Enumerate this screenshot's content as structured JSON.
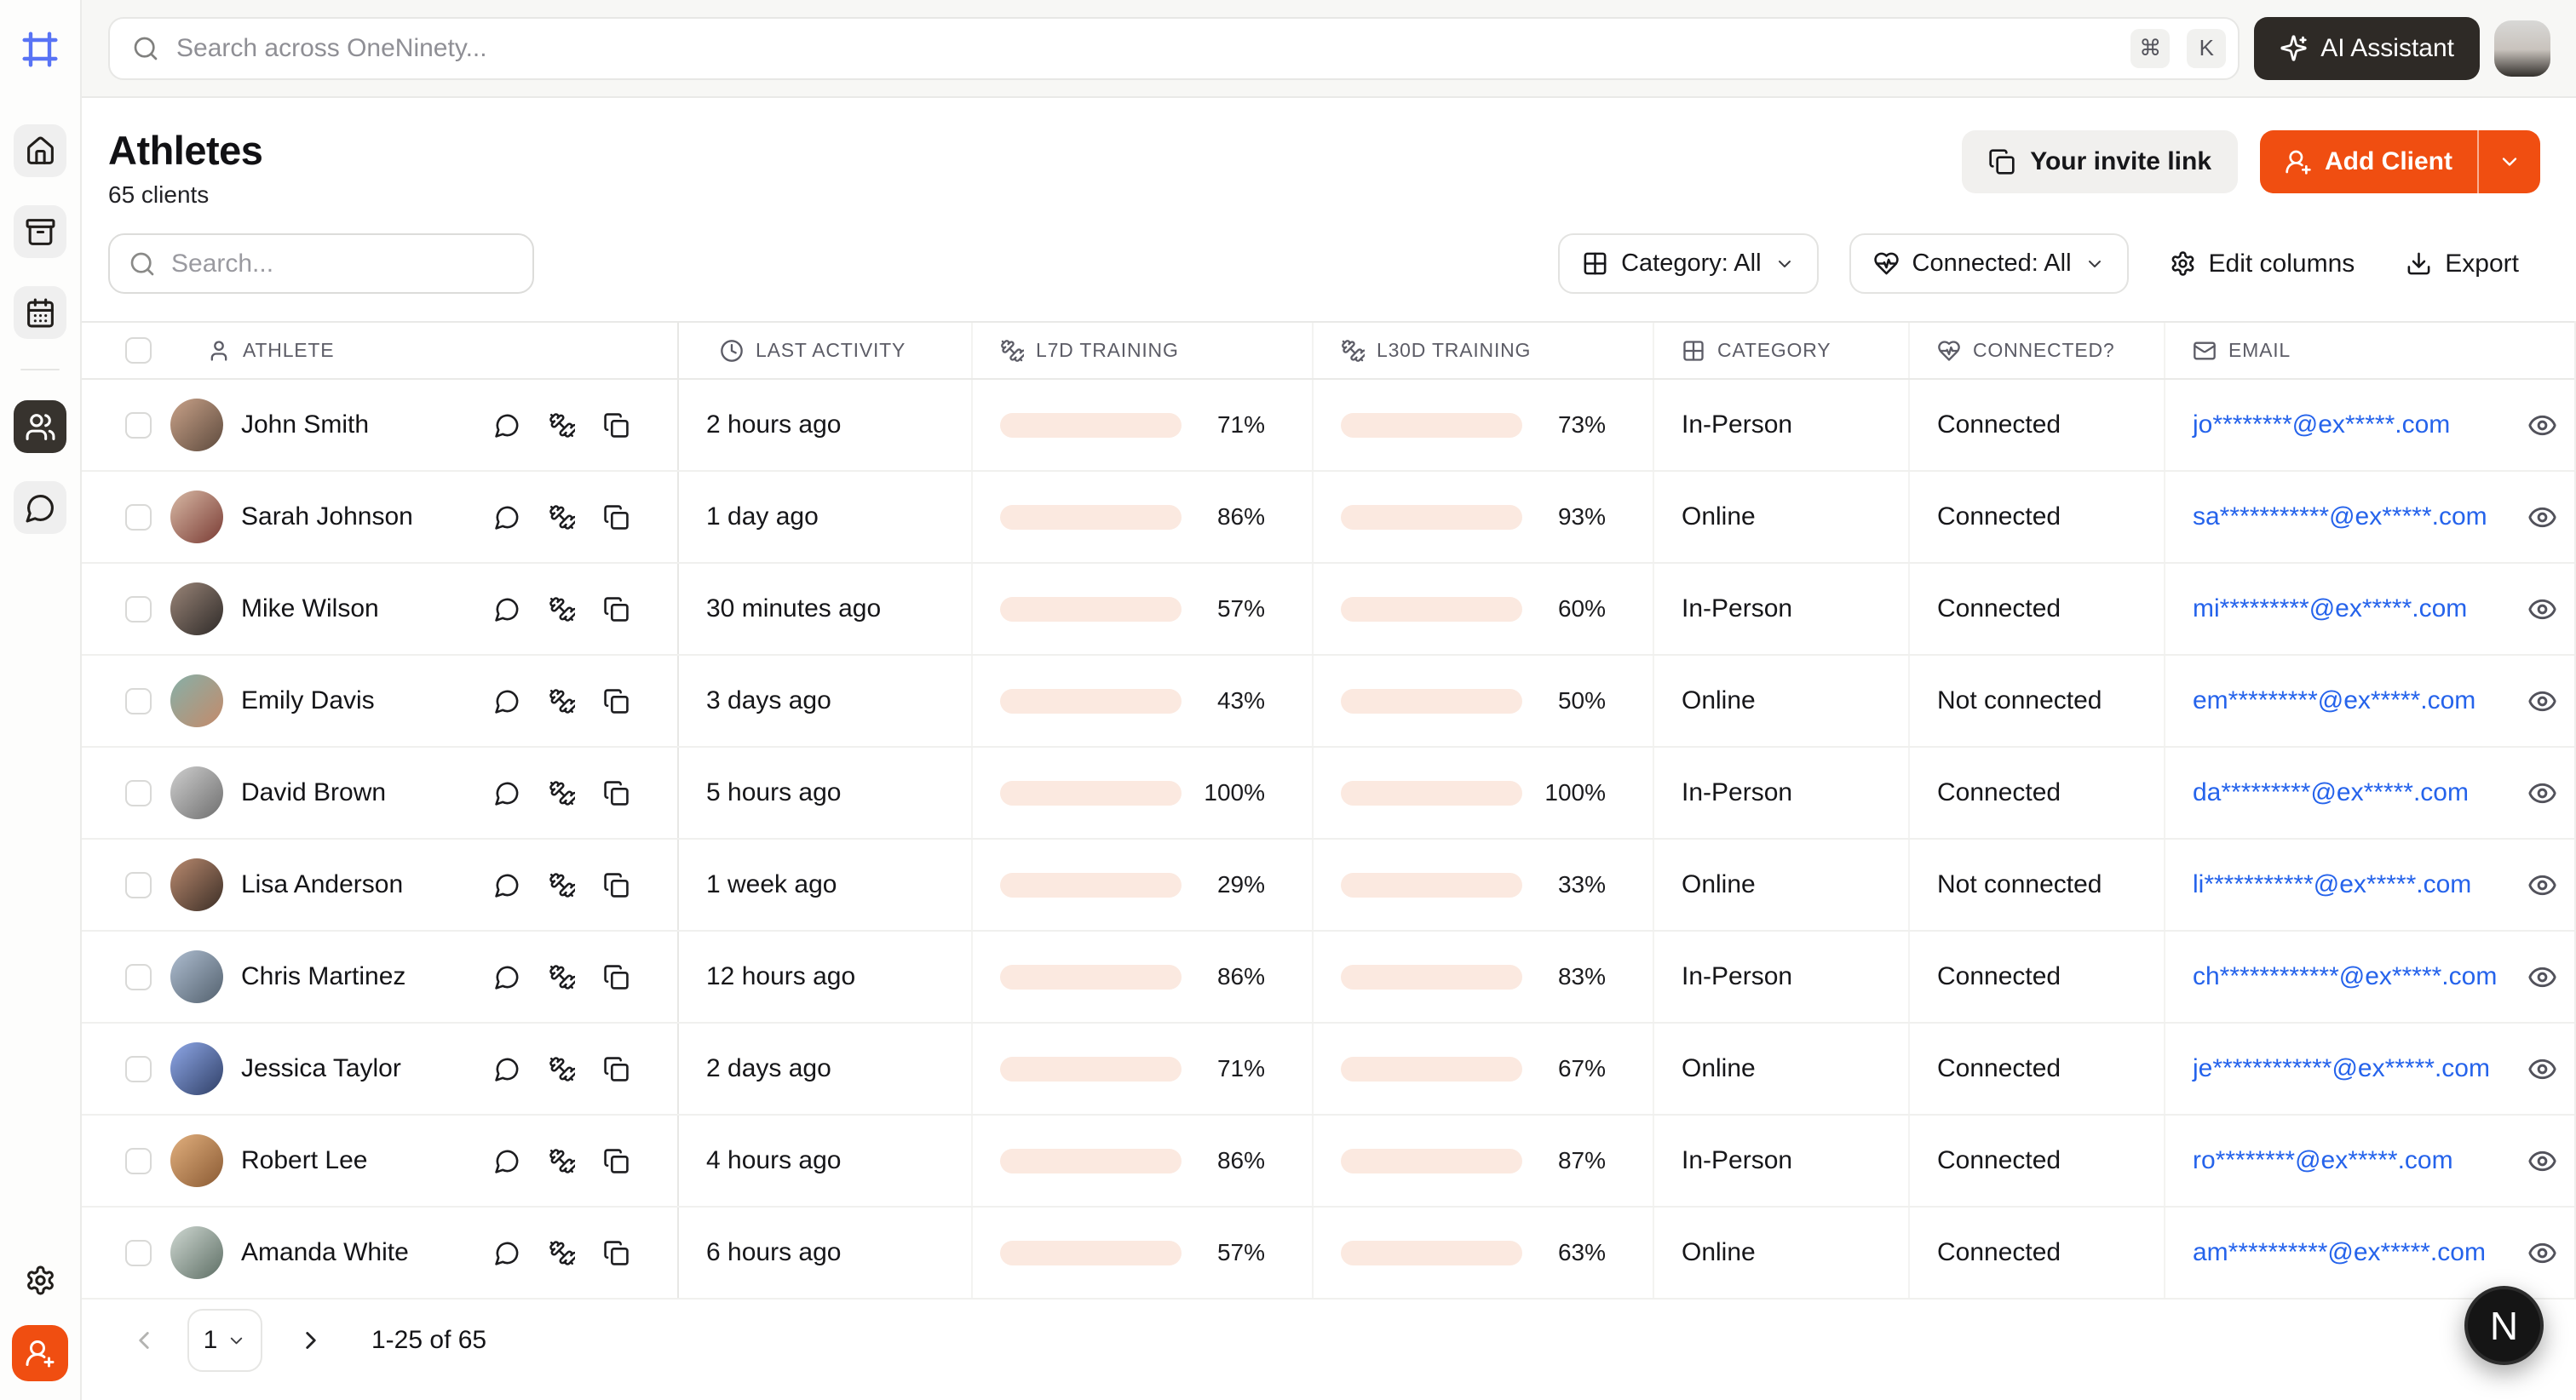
{
  "topbar": {
    "search_placeholder": "Search across OneNinety...",
    "shortcut_keys": [
      "⌘",
      "K"
    ],
    "ai_assistant_label": "AI Assistant"
  },
  "sidebar": {
    "logo_icon": "frame",
    "items": [
      {
        "icon": "home",
        "active": false
      },
      {
        "icon": "archive",
        "active": false
      },
      {
        "icon": "calendar",
        "active": false
      },
      {
        "icon": "users",
        "active": true
      },
      {
        "icon": "message-circle",
        "active": false
      }
    ],
    "bottom_items": [
      {
        "icon": "settings",
        "accent": false
      },
      {
        "icon": "user-plus",
        "accent": true
      }
    ]
  },
  "page_header": {
    "title": "Athletes",
    "subtitle": "65 clients",
    "invite_link_label": "Your invite link",
    "add_client_label": "Add Client"
  },
  "toolbar": {
    "search_placeholder": "Search...",
    "category_filter_label": "Category: All",
    "connected_filter_label": "Connected: All",
    "edit_columns_label": "Edit columns",
    "export_label": "Export"
  },
  "table": {
    "columns": [
      {
        "icon": "user",
        "label": "ATHLETE"
      },
      {
        "icon": "clock",
        "label": "LAST ACTIVITY"
      },
      {
        "icon": "dumbbell",
        "label": "L7D TRAINING"
      },
      {
        "icon": "dumbbell",
        "label": "L30D TRAINING"
      },
      {
        "icon": "grid",
        "label": "CATEGORY"
      },
      {
        "icon": "heart-pulse",
        "label": "CONNECTED?"
      },
      {
        "icon": "mail",
        "label": "EMAIL"
      }
    ],
    "row_action_icons": [
      "message-circle",
      "dumbbell",
      "copy"
    ],
    "rows": [
      {
        "name": "John Smith",
        "last_activity": "2 hours ago",
        "l7d": "71%",
        "l30d": "73%",
        "category": "In-Person",
        "connected": "Connected",
        "email": "jo********@ex*****.com"
      },
      {
        "name": "Sarah Johnson",
        "last_activity": "1 day ago",
        "l7d": "86%",
        "l30d": "93%",
        "category": "Online",
        "connected": "Connected",
        "email": "sa***********@ex*****.com"
      },
      {
        "name": "Mike Wilson",
        "last_activity": "30 minutes ago",
        "l7d": "57%",
        "l30d": "60%",
        "category": "In-Person",
        "connected": "Connected",
        "email": "mi*********@ex*****.com"
      },
      {
        "name": "Emily Davis",
        "last_activity": "3 days ago",
        "l7d": "43%",
        "l30d": "50%",
        "category": "Online",
        "connected": "Not connected",
        "email": "em*********@ex*****.com"
      },
      {
        "name": "David Brown",
        "last_activity": "5 hours ago",
        "l7d": "100%",
        "l30d": "100%",
        "category": "In-Person",
        "connected": "Connected",
        "email": "da*********@ex*****.com"
      },
      {
        "name": "Lisa Anderson",
        "last_activity": "1 week ago",
        "l7d": "29%",
        "l30d": "33%",
        "category": "Online",
        "connected": "Not connected",
        "email": "li***********@ex*****.com"
      },
      {
        "name": "Chris Martinez",
        "last_activity": "12 hours ago",
        "l7d": "86%",
        "l30d": "83%",
        "category": "In-Person",
        "connected": "Connected",
        "email": "ch************@ex*****.com"
      },
      {
        "name": "Jessica Taylor",
        "last_activity": "2 days ago",
        "l7d": "71%",
        "l30d": "67%",
        "category": "Online",
        "connected": "Connected",
        "email": "je************@ex*****.com"
      },
      {
        "name": "Robert Lee",
        "last_activity": "4 hours ago",
        "l7d": "86%",
        "l30d": "87%",
        "category": "In-Person",
        "connected": "Connected",
        "email": "ro********@ex*****.com"
      },
      {
        "name": "Amanda White",
        "last_activity": "6 hours ago",
        "l7d": "57%",
        "l30d": "63%",
        "category": "Online",
        "connected": "Connected",
        "email": "am**********@ex*****.com"
      }
    ]
  },
  "pagination": {
    "page": "1",
    "range_label": "1-25 of 65"
  },
  "floating_button_label": "N",
  "colors": {
    "accent_orange": "#F04E11",
    "bar_fill": "#F2793D",
    "bar_track": "#FBE9E0",
    "email_blue": "#2563EB",
    "ai_button_bg": "#2E2A26",
    "active_nav_bg": "#37332E",
    "logo_blue": "#5873F5"
  }
}
